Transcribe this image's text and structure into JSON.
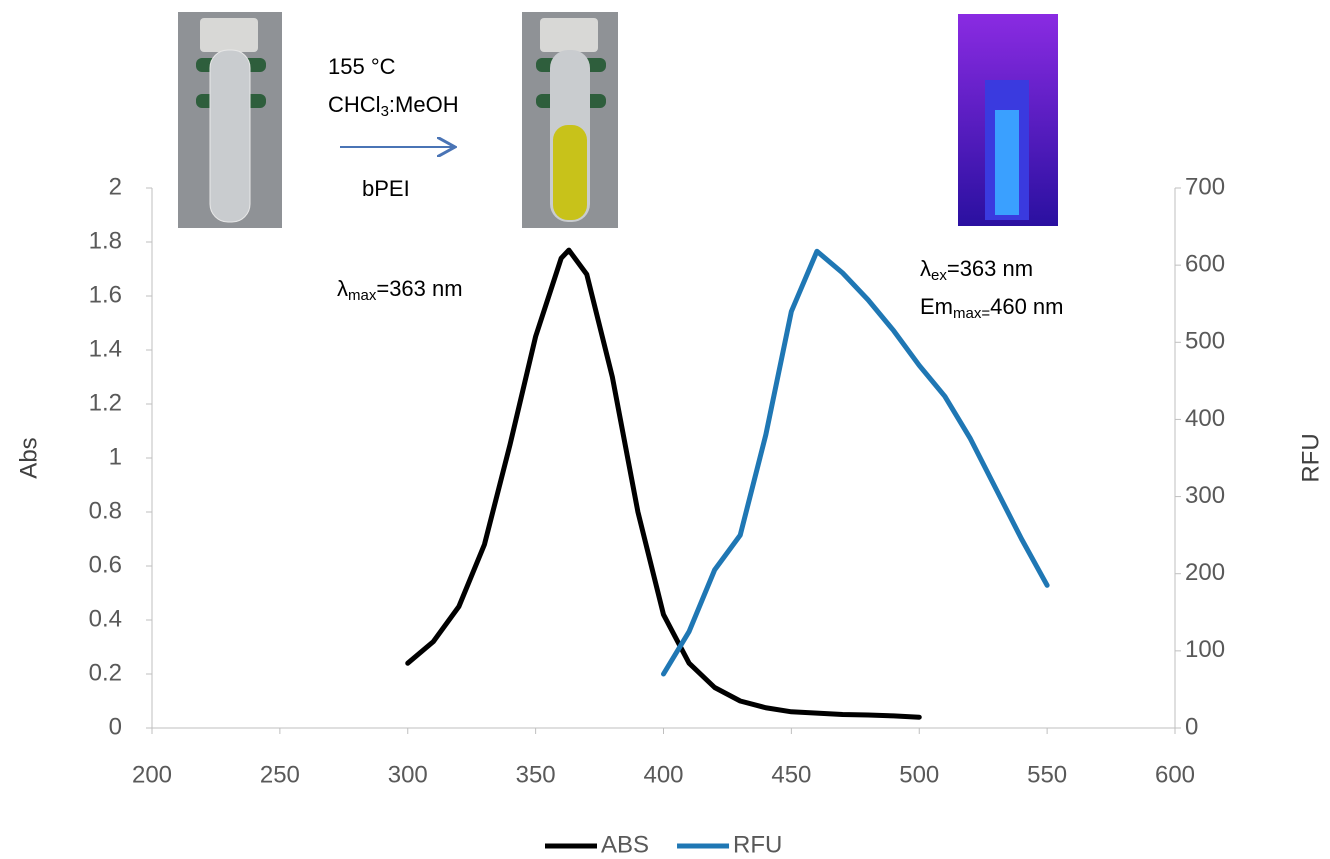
{
  "chart_data": {
    "type": "line",
    "xlabel": null,
    "ylabel": "Abs",
    "y2label": "RFU",
    "xlim": [
      200,
      600
    ],
    "xticks": [
      200,
      250,
      300,
      350,
      400,
      450,
      500,
      550,
      600
    ],
    "ylim": [
      0,
      2
    ],
    "yticks": [
      0,
      0.2,
      0.4,
      0.6,
      0.8,
      1,
      1.2,
      1.4,
      1.6,
      1.8,
      2
    ],
    "y2lim": [
      0,
      700
    ],
    "y2ticks": [
      0,
      100,
      200,
      300,
      400,
      500,
      600,
      700
    ],
    "legend": "bottom",
    "series": [
      {
        "name": "ABS",
        "color": "#000000",
        "x": [
          300,
          310,
          320,
          330,
          340,
          350,
          360,
          363,
          370,
          380,
          390,
          400,
          410,
          420,
          430,
          440,
          450,
          460,
          470,
          480,
          490,
          500
        ],
        "values": [
          0.24,
          0.32,
          0.45,
          0.68,
          1.05,
          1.45,
          1.74,
          1.77,
          1.68,
          1.3,
          0.8,
          0.42,
          0.24,
          0.15,
          0.1,
          0.075,
          0.06,
          0.055,
          0.05,
          0.048,
          0.045,
          0.04
        ]
      },
      {
        "name": "RFU",
        "color": "#1f77b4",
        "axis": "y2",
        "x": [
          400,
          410,
          420,
          430,
          440,
          450,
          460,
          470,
          480,
          490,
          500,
          510,
          520,
          530,
          540,
          550
        ],
        "values": [
          70,
          125,
          205,
          250,
          380,
          540,
          618,
          590,
          555,
          515,
          470,
          430,
          375,
          310,
          245,
          185
        ]
      }
    ],
    "annotations": [
      [
        "155 °C"
      ],
      [
        "CHCl",
        "3",
        ":MeOH"
      ],
      [
        "bPEI"
      ],
      [
        "λ",
        "max",
        "=363 nm"
      ],
      [
        "λ",
        "ex",
        "=363 nm"
      ],
      [
        "Em",
        "max=",
        "460 nm"
      ]
    ]
  }
}
